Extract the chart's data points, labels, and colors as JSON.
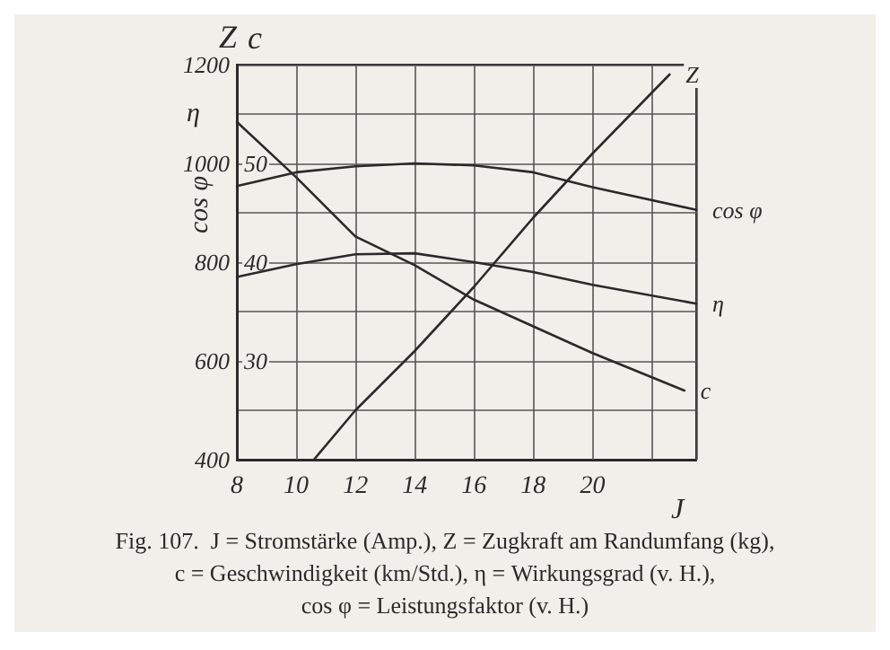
{
  "chart_data": {
    "type": "line",
    "xlabel": "J",
    "ylabel": "Z",
    "y2label": "c",
    "annotations": [
      "η",
      "cos φ",
      "Fig. 107.  J = Stromstärke (Amp.), Z = Zugkraft am Randumfang (kg),\nc = Geschwindigkeit (km/Std.), η = Wirkungsgrad (v. H.),\ncos φ = Leistungsfaktor (v. H.)"
    ],
    "xlim": [
      8,
      23.5
    ],
    "xticks": [
      8,
      10,
      12,
      14,
      16,
      18,
      20
    ],
    "ylim": [
      400,
      1200
    ],
    "yticks": [
      400,
      {
        "value": 500,
        "label": null
      },
      600,
      {
        "value": 700,
        "label": null
      },
      800,
      {
        "value": 900,
        "label": null
      },
      1000,
      {
        "value": 1100,
        "label": null
      },
      1200
    ],
    "y2lim": [
      20,
      60
    ],
    "y2ticks": [
      30,
      40,
      50
    ],
    "grid": true,
    "legend": false,
    "marker": "none",
    "line_style": "solid",
    "series": [
      {
        "name": "Z",
        "color": "#2a2a2a",
        "x": [
          10.6,
          12,
          14,
          16,
          18,
          20,
          22.6
        ],
        "values": [
          400,
          500,
          620,
          750,
          890,
          1020,
          1180
        ]
      },
      {
        "name": "c",
        "color": "#2a2a2a",
        "axis": "y2",
        "x": [
          8,
          10,
          12,
          14,
          16,
          18,
          20,
          23.1
        ],
        "values": [
          54.2,
          48.6,
          42.6,
          39.7,
          36.2,
          33.5,
          30.8,
          27
        ]
      },
      {
        "name": "η",
        "color": "#2a2a2a",
        "axis": "y2",
        "x": [
          8,
          10,
          12,
          14,
          16,
          18,
          20,
          23.5
        ],
        "values": [
          38.5,
          39.8,
          40.8,
          40.9,
          40,
          39,
          37.7,
          35.8
        ]
      },
      {
        "name": "cos φ",
        "color": "#2a2a2a",
        "axis": "y2",
        "x": [
          8,
          10,
          12,
          14,
          16,
          18,
          20,
          23.5
        ],
        "values": [
          47.7,
          49.1,
          49.7,
          50,
          49.8,
          49.1,
          47.6,
          45.3
        ]
      }
    ]
  }
}
